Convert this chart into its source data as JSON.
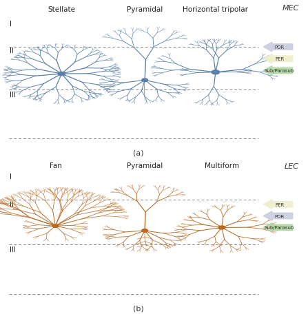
{
  "fig_width": 4.47,
  "fig_height": 4.6,
  "bg_color": "#ffffff",
  "top_label": "MEC",
  "bottom_label": "LEC",
  "top_caption": "(a)",
  "bottom_caption": "(b)",
  "top_neuron_labels": [
    "Stellate",
    "Pyramidal",
    "Horizontal tripolar"
  ],
  "bottom_neuron_labels": [
    "Fan",
    "Pyramidal",
    "Multiform"
  ],
  "mec_legend": [
    {
      "label": "POR",
      "color": "#c8cce0"
    },
    {
      "label": "PER",
      "color": "#f0eecc"
    },
    {
      "label": "Sub/Parasub",
      "color": "#b0d8a0"
    }
  ],
  "lec_legend": [
    {
      "label": "PER",
      "color": "#f0eecc"
    },
    {
      "label": "POR",
      "color": "#c8cce0"
    },
    {
      "label": "Sub/Parasub",
      "color": "#b0d8a0"
    }
  ],
  "neuron_color_top": "#5a7fa8",
  "neuron_color_bottom": "#b86820",
  "dashed_line_color": "#888888",
  "layer_label_color": "#000000"
}
